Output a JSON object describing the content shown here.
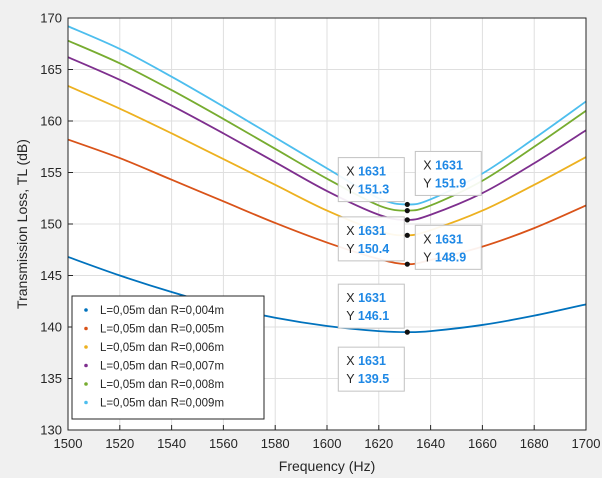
{
  "chart_data": {
    "type": "line",
    "title": "",
    "xlabel": "Frequency (Hz)",
    "ylabel": "Transmission Loss, TL (dB)",
    "xlim": [
      1500,
      1700
    ],
    "ylim": [
      130,
      170
    ],
    "xticks": [
      1500,
      1520,
      1540,
      1560,
      1580,
      1600,
      1620,
      1640,
      1660,
      1680,
      1700
    ],
    "yticks": [
      130,
      135,
      140,
      145,
      150,
      155,
      160,
      165,
      170
    ],
    "grid": true,
    "legend_position": "bottom-left",
    "series": [
      {
        "name": "L=0,05m dan R=0,004m",
        "color": "#0072BD",
        "x": [
          1500,
          1520,
          1540,
          1560,
          1580,
          1600,
          1620,
          1631,
          1640,
          1660,
          1680,
          1700
        ],
        "y": [
          146.8,
          145.0,
          143.4,
          142.0,
          140.9,
          140.1,
          139.6,
          139.5,
          139.6,
          140.2,
          141.1,
          142.2
        ]
      },
      {
        "name": "L=0,05m dan R=0,005m",
        "color": "#D95319",
        "x": [
          1500,
          1520,
          1540,
          1560,
          1580,
          1600,
          1620,
          1631,
          1640,
          1660,
          1680,
          1700
        ],
        "y": [
          158.2,
          156.4,
          154.3,
          152.2,
          150.1,
          148.2,
          146.6,
          146.1,
          146.5,
          147.8,
          149.6,
          151.8
        ]
      },
      {
        "name": "L=0,05m dan R=0,006m",
        "color": "#EDB120",
        "x": [
          1500,
          1520,
          1540,
          1560,
          1580,
          1600,
          1620,
          1631,
          1640,
          1660,
          1680,
          1700
        ],
        "y": [
          163.4,
          161.2,
          158.8,
          156.3,
          153.8,
          151.3,
          149.3,
          148.9,
          149.4,
          151.3,
          153.8,
          156.5
        ]
      },
      {
        "name": "L=0,05m dan R=0,007m",
        "color": "#7E2F8E",
        "x": [
          1500,
          1520,
          1540,
          1560,
          1580,
          1600,
          1620,
          1631,
          1640,
          1660,
          1680,
          1700
        ],
        "y": [
          166.2,
          164.0,
          161.5,
          158.8,
          156.0,
          153.2,
          150.9,
          150.4,
          150.9,
          153.0,
          155.9,
          159.1
        ]
      },
      {
        "name": "L=0,05m dan R=0,008m",
        "color": "#77AC30",
        "x": [
          1500,
          1520,
          1540,
          1560,
          1580,
          1600,
          1620,
          1631,
          1640,
          1660,
          1680,
          1700
        ],
        "y": [
          167.8,
          165.6,
          163.0,
          160.2,
          157.3,
          154.4,
          151.8,
          151.3,
          151.8,
          154.2,
          157.5,
          161.0
        ]
      },
      {
        "name": "L=0,05m dan R=0,009m",
        "color": "#4DBEEE",
        "x": [
          1500,
          1520,
          1540,
          1560,
          1580,
          1600,
          1620,
          1631,
          1640,
          1660,
          1680,
          1700
        ],
        "y": [
          169.2,
          167.0,
          164.3,
          161.4,
          158.4,
          155.4,
          152.5,
          151.9,
          152.4,
          154.9,
          158.3,
          161.9
        ]
      }
    ],
    "datatips": [
      {
        "x": 1631,
        "y": 151.3,
        "x_text": "1631",
        "y_text": "151.3",
        "placement": "upper-left"
      },
      {
        "x": 1631,
        "y": 151.9,
        "x_text": "1631",
        "y_text": "151.9",
        "placement": "upper-right"
      },
      {
        "x": 1631,
        "y": 150.4,
        "x_text": "1631",
        "y_text": "150.4",
        "placement": "left"
      },
      {
        "x": 1631,
        "y": 148.9,
        "x_text": "1631",
        "y_text": "148.9",
        "placement": "right"
      },
      {
        "x": 1631,
        "y": 146.1,
        "x_text": "1631",
        "y_text": "146.1",
        "placement": "lower-left"
      },
      {
        "x": 1631,
        "y": 139.5,
        "x_text": "1631",
        "y_text": "139.5",
        "placement": "below"
      }
    ],
    "datatip_key_x": "X",
    "datatip_key_y": "Y",
    "colors": {
      "figure_bg": "#f0f0f0",
      "axes_bg": "#ffffff",
      "grid": "#dfdfdf",
      "axis": "#262626"
    }
  }
}
